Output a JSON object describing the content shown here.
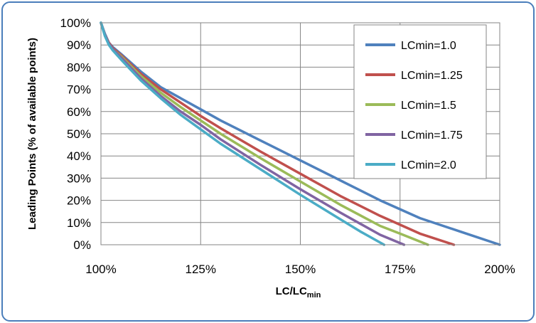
{
  "chart_data": {
    "type": "line",
    "xlabel": "LC/LC",
    "xlabel_subscript": "min",
    "ylabel": "Leading Points (% of available points)",
    "xlim": [
      100,
      200
    ],
    "ylim": [
      0,
      100
    ],
    "x_ticks": [
      100,
      125,
      150,
      175,
      200
    ],
    "x_tick_labels": [
      "100%",
      "125%",
      "150%",
      "175%",
      "200%"
    ],
    "y_ticks": [
      0,
      10,
      20,
      30,
      40,
      50,
      60,
      70,
      80,
      90,
      100
    ],
    "y_tick_labels": [
      "0%",
      "10%",
      "20%",
      "30%",
      "40%",
      "50%",
      "60%",
      "70%",
      "80%",
      "90%",
      "100%"
    ],
    "grid": "major gridlines",
    "legend_position": "top-right",
    "series": [
      {
        "name": "LCmin=1.0",
        "color": "#4f81bd",
        "x": [
          100,
          101,
          102,
          103,
          105,
          110,
          115,
          120,
          125,
          130,
          140,
          150,
          160,
          170,
          175,
          180,
          190,
          200
        ],
        "y": [
          100,
          95,
          91,
          89,
          86,
          78,
          71,
          66,
          61,
          56,
          47,
          38,
          29,
          20,
          16,
          12,
          6,
          0
        ]
      },
      {
        "name": "LCmin=1.25",
        "color": "#c0504d",
        "x": [
          100,
          101,
          102,
          103,
          105,
          110,
          115,
          120,
          125,
          130,
          140,
          150,
          160,
          170,
          175,
          180,
          188.5
        ],
        "y": [
          100,
          94.5,
          91,
          88.5,
          85.5,
          77,
          70,
          64,
          58,
          52.5,
          42,
          32,
          22,
          13,
          9,
          5,
          0
        ]
      },
      {
        "name": "LCmin=1.5",
        "color": "#9bbb59",
        "x": [
          100,
          101,
          102,
          103,
          105,
          110,
          115,
          120,
          125,
          130,
          140,
          150,
          160,
          170,
          175,
          182
        ],
        "y": [
          100,
          94.5,
          90.5,
          88,
          85,
          76,
          68.5,
          62,
          56,
          50,
          39,
          28.5,
          18,
          8.5,
          5,
          0
        ]
      },
      {
        "name": "LCmin=1.75",
        "color": "#8064a2",
        "x": [
          100,
          101,
          102,
          103,
          105,
          110,
          115,
          120,
          125,
          130,
          140,
          150,
          160,
          170,
          176
        ],
        "y": [
          100,
          94.5,
          90.5,
          88,
          84.5,
          75,
          67,
          60,
          54,
          47.5,
          36,
          25,
          14.5,
          4.5,
          0
        ]
      },
      {
        "name": "LCmin=2.0",
        "color": "#4bacc6",
        "x": [
          100,
          101,
          102,
          103,
          105,
          110,
          115,
          120,
          125,
          130,
          140,
          150,
          160,
          165,
          171
        ],
        "y": [
          100,
          94,
          90,
          87.5,
          83.5,
          74,
          66,
          58.5,
          52,
          45.5,
          34,
          22.5,
          11.5,
          6,
          0
        ]
      }
    ]
  }
}
